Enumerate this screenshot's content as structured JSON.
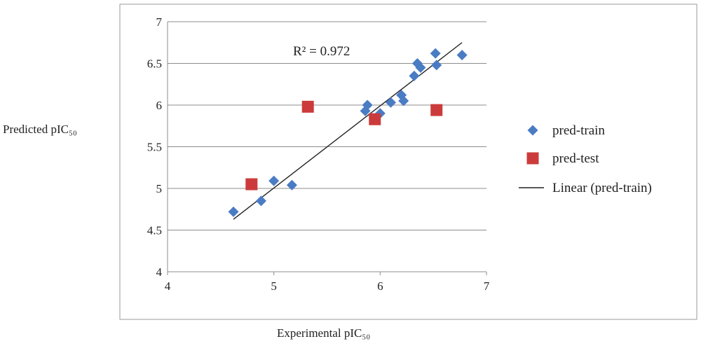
{
  "chart_data": {
    "type": "scatter",
    "title": "",
    "xlabel": "Experimental pIC₅₀",
    "ylabel": "Predicted pIC₅₀",
    "xlim": [
      4,
      7
    ],
    "ylim": [
      4,
      7
    ],
    "x_ticks": [
      "4",
      "5",
      "6",
      "7"
    ],
    "y_ticks": [
      "4",
      "4.5",
      "5",
      "5.5",
      "6",
      "6.5",
      "7"
    ],
    "grid": "horizontal",
    "legend_position": "right",
    "annotation": "R² = 0.972",
    "series": [
      {
        "name": "pred-train",
        "marker": "diamond",
        "color": "#4a7cc4",
        "points": [
          [
            4.62,
            4.72
          ],
          [
            4.88,
            4.85
          ],
          [
            5.0,
            5.09
          ],
          [
            5.17,
            5.04
          ],
          [
            5.86,
            5.93
          ],
          [
            5.88,
            6.0
          ],
          [
            6.0,
            5.9
          ],
          [
            6.1,
            6.03
          ],
          [
            6.2,
            6.12
          ],
          [
            6.22,
            6.05
          ],
          [
            6.32,
            6.35
          ],
          [
            6.35,
            6.5
          ],
          [
            6.38,
            6.45
          ],
          [
            6.52,
            6.62
          ],
          [
            6.53,
            6.48
          ],
          [
            6.77,
            6.6
          ]
        ]
      },
      {
        "name": "pred-test",
        "marker": "square",
        "color": "#cc3b3b",
        "points": [
          [
            4.79,
            5.05
          ],
          [
            5.32,
            5.98
          ],
          [
            5.95,
            5.83
          ],
          [
            6.53,
            5.94
          ]
        ]
      },
      {
        "name": "Linear (pred-train)",
        "type": "line",
        "color": "#222222",
        "points": [
          [
            4.62,
            4.63
          ],
          [
            6.77,
            6.75
          ]
        ]
      }
    ]
  }
}
